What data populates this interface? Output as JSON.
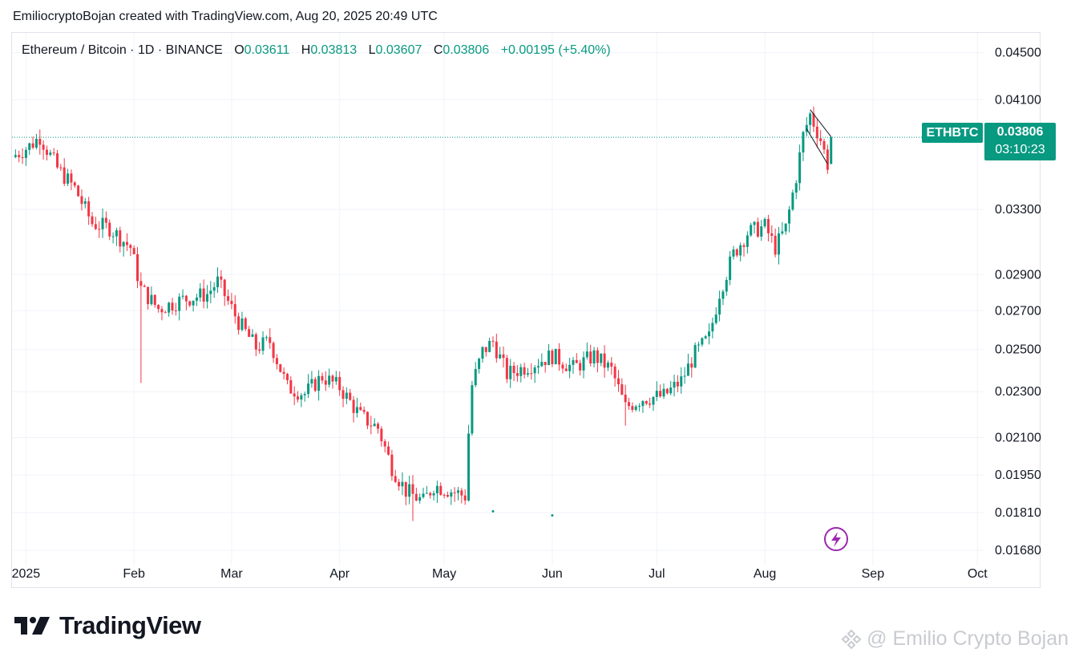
{
  "caption": "EmiliocryptoBojan created with TradingView.com, Aug 20, 2025 20:49 UTC",
  "legend": {
    "symbol": "Ethereum / Bitcoin · 1D · BINANCE",
    "open_label": "O",
    "open": "0.03611",
    "high_label": "H",
    "high": "0.03813",
    "low_label": "L",
    "low": "0.03607",
    "close_label": "C",
    "close": "0.03806",
    "change": "+0.00195 (+5.40%)"
  },
  "price_tag": {
    "symbol": "ETHBTC",
    "price": "0.03806",
    "countdown": "03:10:23"
  },
  "brand": {
    "name": "TradingView"
  },
  "watermark": {
    "text": "@ Emilio Crypto Bojan"
  },
  "colors": {
    "up": "#089981",
    "down": "#f23645",
    "grid": "#f0f3fa",
    "text": "#131722",
    "lightning": "#9c27b0"
  },
  "icons": {
    "lightning": "lightning-icon",
    "logo": "tradingview-logo-icon"
  },
  "chart_data": {
    "type": "candlestick",
    "title": "Ethereum / Bitcoin · 1D · BINANCE",
    "y_scale": "log",
    "ylim": [
      0.0163,
      0.0468
    ],
    "yticks": [
      "0.04500",
      "0.04100",
      "0.03300",
      "0.02900",
      "0.02700",
      "0.02500",
      "0.02300",
      "0.02100",
      "0.01950",
      "0.01810",
      "0.01680"
    ],
    "xticks": [
      {
        "label": "2025",
        "date": "2025-01-01"
      },
      {
        "label": "Feb",
        "date": "2025-02-01"
      },
      {
        "label": "Mar",
        "date": "2025-03-01"
      },
      {
        "label": "Apr",
        "date": "2025-04-01"
      },
      {
        "label": "May",
        "date": "2025-05-01"
      },
      {
        "label": "Jun",
        "date": "2025-06-01"
      },
      {
        "label": "Jul",
        "date": "2025-07-01"
      },
      {
        "label": "Aug",
        "date": "2025-08-01"
      },
      {
        "label": "Sep",
        "date": "2025-09-01"
      },
      {
        "label": "Oct",
        "date": "2025-10-01"
      }
    ],
    "x_range": [
      "2024-12-28",
      "2025-10-03"
    ],
    "last_price": 0.03806,
    "series": [
      {
        "date": "2024-12-28",
        "close": 0.0366
      },
      {
        "date": "2025-01-02",
        "close": 0.0374
      },
      {
        "date": "2025-01-05",
        "close": 0.0381
      },
      {
        "date": "2025-01-10",
        "close": 0.0358
      },
      {
        "date": "2025-01-15",
        "close": 0.0344
      },
      {
        "date": "2025-01-20",
        "close": 0.0321
      },
      {
        "date": "2025-01-25",
        "close": 0.0318
      },
      {
        "date": "2025-01-31",
        "close": 0.0306
      },
      {
        "date": "2025-02-03",
        "close": 0.0282
      },
      {
        "date": "2025-02-08",
        "close": 0.0271
      },
      {
        "date": "2025-02-15",
        "close": 0.0276
      },
      {
        "date": "2025-02-22",
        "close": 0.0279
      },
      {
        "date": "2025-02-25",
        "close": 0.0286
      },
      {
        "date": "2025-03-03",
        "close": 0.0264
      },
      {
        "date": "2025-03-08",
        "close": 0.0251
      },
      {
        "date": "2025-03-12",
        "close": 0.0254
      },
      {
        "date": "2025-03-17",
        "close": 0.0232
      },
      {
        "date": "2025-03-22",
        "close": 0.0229
      },
      {
        "date": "2025-03-27",
        "close": 0.0237
      },
      {
        "date": "2025-04-01",
        "close": 0.0232
      },
      {
        "date": "2025-04-07",
        "close": 0.0219
      },
      {
        "date": "2025-04-12",
        "close": 0.0214
      },
      {
        "date": "2025-04-16",
        "close": 0.0198
      },
      {
        "date": "2025-04-20",
        "close": 0.0189
      },
      {
        "date": "2025-04-25",
        "close": 0.0185
      },
      {
        "date": "2025-04-28",
        "close": 0.0191
      },
      {
        "date": "2025-05-03",
        "close": 0.0189
      },
      {
        "date": "2025-05-07",
        "close": 0.0187
      },
      {
        "date": "2025-05-08",
        "close": 0.0212
      },
      {
        "date": "2025-05-09",
        "close": 0.0233
      },
      {
        "date": "2025-05-12",
        "close": 0.0249
      },
      {
        "date": "2025-05-15",
        "close": 0.0254
      },
      {
        "date": "2025-05-19",
        "close": 0.0238
      },
      {
        "date": "2025-05-25",
        "close": 0.0242
      },
      {
        "date": "2025-06-01",
        "close": 0.0247
      },
      {
        "date": "2025-06-07",
        "close": 0.0241
      },
      {
        "date": "2025-06-13",
        "close": 0.0247
      },
      {
        "date": "2025-06-18",
        "close": 0.024
      },
      {
        "date": "2025-06-22",
        "close": 0.0223
      },
      {
        "date": "2025-06-27",
        "close": 0.0227
      },
      {
        "date": "2025-07-03",
        "close": 0.0228
      },
      {
        "date": "2025-07-08",
        "close": 0.0235
      },
      {
        "date": "2025-07-12",
        "close": 0.0248
      },
      {
        "date": "2025-07-16",
        "close": 0.0256
      },
      {
        "date": "2025-07-19",
        "close": 0.028
      },
      {
        "date": "2025-07-23",
        "close": 0.0302
      },
      {
        "date": "2025-07-27",
        "close": 0.0315
      },
      {
        "date": "2025-08-01",
        "close": 0.0319
      },
      {
        "date": "2025-08-04",
        "close": 0.0306
      },
      {
        "date": "2025-08-07",
        "close": 0.0318
      },
      {
        "date": "2025-08-10",
        "close": 0.0352
      },
      {
        "date": "2025-08-12",
        "close": 0.0382
      },
      {
        "date": "2025-08-14",
        "close": 0.0398
      },
      {
        "date": "2025-08-17",
        "close": 0.0379
      },
      {
        "date": "2025-08-19",
        "close": 0.0361
      },
      {
        "date": "2025-08-20",
        "close": 0.03806
      }
    ],
    "channel": {
      "upper": [
        [
          "2025-08-14",
          0.0402
        ],
        [
          "2025-08-20",
          0.0381
        ]
      ],
      "lower": [
        [
          "2025-08-13",
          0.0387
        ],
        [
          "2025-08-19",
          0.0361
        ]
      ]
    },
    "grid": true
  }
}
